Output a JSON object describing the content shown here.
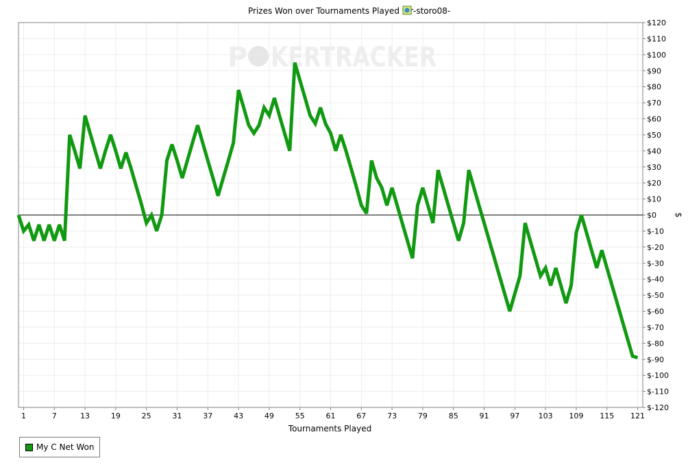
{
  "chart_data": {
    "type": "line",
    "title_prefix": "Prizes Won over Tournaments Played for",
    "title_player": "-storo08-",
    "xlabel": "Tournaments Played",
    "ylabel": "$",
    "watermark_left": "P",
    "watermark_o": "O",
    "watermark_right": "KERTRACKER",
    "xlim": [
      0,
      122
    ],
    "ylim": [
      -120,
      120
    ],
    "x_ticks": [
      1,
      7,
      13,
      19,
      25,
      31,
      37,
      43,
      49,
      55,
      61,
      67,
      73,
      79,
      85,
      91,
      97,
      103,
      109,
      115,
      121
    ],
    "y_ticks": [
      120,
      110,
      100,
      90,
      80,
      70,
      60,
      50,
      40,
      30,
      20,
      10,
      0,
      -10,
      -20,
      -30,
      -40,
      -50,
      -60,
      -70,
      -80,
      -90,
      -100,
      -110,
      -120
    ],
    "y_tick_labels": [
      "$120",
      "$110",
      "$100",
      "$90",
      "$80",
      "$70",
      "$60",
      "$50",
      "$40",
      "$30",
      "$20",
      "$10",
      "$0",
      "$-10",
      "$-20",
      "$-30",
      "$-40",
      "$-50",
      "$-60",
      "$-70",
      "$-80",
      "$-90",
      "$-100",
      "$-110",
      "$-120"
    ],
    "grid": true,
    "legend_position": "bottom-left",
    "series": [
      {
        "name": "My C Net Won",
        "color": "#119911",
        "x": [
          0,
          1,
          2,
          3,
          4,
          5,
          6,
          7,
          8,
          9,
          10,
          11,
          12,
          13,
          14,
          15,
          16,
          17,
          18,
          19,
          20,
          21,
          22,
          23,
          24,
          25,
          26,
          27,
          28,
          29,
          30,
          31,
          32,
          33,
          34,
          35,
          36,
          37,
          38,
          39,
          40,
          41,
          42,
          43,
          44,
          45,
          46,
          47,
          48,
          49,
          50,
          51,
          52,
          53,
          54,
          55,
          56,
          57,
          58,
          59,
          60,
          61,
          62,
          63,
          64,
          65,
          66,
          67,
          68,
          69,
          70,
          71,
          72,
          73,
          74,
          75,
          76,
          77,
          78,
          79,
          80,
          81,
          82,
          83,
          84,
          85,
          86,
          87,
          88,
          89,
          90,
          91,
          92,
          93,
          94,
          95,
          96,
          97,
          98,
          99,
          100,
          101,
          102,
          103,
          104,
          105,
          106,
          107,
          108,
          109,
          110,
          111,
          112,
          113,
          114,
          115,
          116,
          117,
          118,
          119,
          120,
          121
        ],
        "values": [
          0,
          -10,
          -6,
          -16,
          -6,
          -16,
          -6,
          -16,
          -6,
          -16,
          50,
          40,
          29,
          62,
          51,
          40,
          29,
          40,
          50,
          40,
          29,
          39,
          29,
          18,
          7,
          -5,
          0,
          -10,
          0,
          34,
          44,
          34,
          23,
          34,
          45,
          56,
          45,
          34,
          23,
          12,
          23,
          34,
          45,
          78,
          67,
          56,
          51,
          56,
          67,
          62,
          73,
          62,
          51,
          40,
          95,
          84,
          73,
          62,
          57,
          67,
          57,
          51,
          40,
          50,
          40,
          29,
          18,
          6,
          1,
          34,
          23,
          17,
          6,
          17,
          6,
          -5,
          -16,
          -27,
          6,
          17,
          6,
          -5,
          28,
          17,
          6,
          -5,
          -16,
          -5,
          28,
          17,
          6,
          -5,
          -16,
          -27,
          -38,
          -49,
          -60,
          -49,
          -38,
          -5,
          -16,
          -27,
          -38,
          -33,
          -44,
          -33,
          -44,
          -55,
          -44,
          -11,
          0,
          -11,
          -22,
          -33,
          -22,
          -33,
          -44,
          -55,
          -66,
          -77,
          -88,
          -89
        ]
      }
    ]
  }
}
